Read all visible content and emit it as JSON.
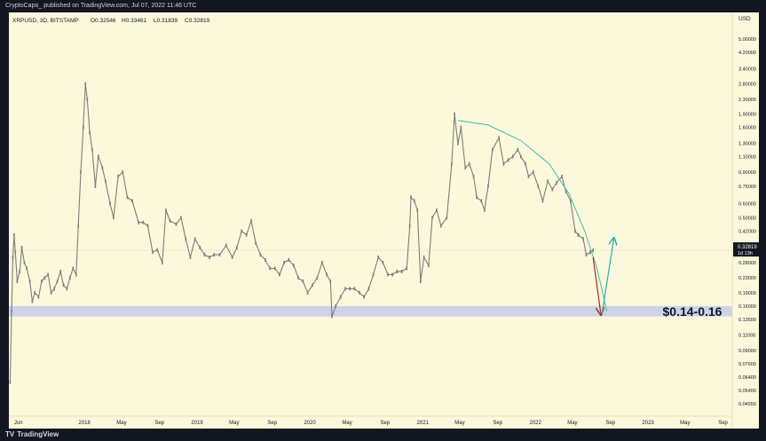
{
  "header": {
    "publish_line": "CryptoCapo_ published on TradingView.com, Jul 07, 2022 11:46 UTC"
  },
  "legend": {
    "symbol": "XRPUSD, 3D, BITSTAMP",
    "open": "O0.32546",
    "high": "H0.33461",
    "low": "L0.31839",
    "close": "C0.32819"
  },
  "footer": {
    "brand": "TradingView",
    "brand_mark": "TV"
  },
  "colors": {
    "background": "#fcf8dc",
    "frame": "#131722",
    "candles": "#7d7d7d",
    "support_zone": "#c9cde8",
    "arc": "#3fbf9f",
    "down_arrow": "#b22222",
    "up_arrow": "#20b2aa",
    "price_tag": "#131722"
  },
  "chart_data": {
    "type": "line",
    "title": "XRPUSD, 3D, BITSTAMP",
    "scale": "log",
    "y_unit": "USD",
    "ylim": [
      0.041,
      6.0
    ],
    "x_range": [
      "2017-05-01",
      "2023-10-01"
    ],
    "x_ticks": [
      {
        "date": "2017-06-01",
        "label": "Jun"
      },
      {
        "date": "2018-01-01",
        "label": "2018"
      },
      {
        "date": "2018-05-01",
        "label": "May"
      },
      {
        "date": "2018-09-01",
        "label": "Sep"
      },
      {
        "date": "2019-01-01",
        "label": "2019"
      },
      {
        "date": "2019-05-01",
        "label": "May"
      },
      {
        "date": "2019-09-01",
        "label": "Sep"
      },
      {
        "date": "2020-01-01",
        "label": "2020"
      },
      {
        "date": "2020-05-01",
        "label": "May"
      },
      {
        "date": "2020-09-01",
        "label": "Sep"
      },
      {
        "date": "2021-01-01",
        "label": "2021"
      },
      {
        "date": "2021-05-01",
        "label": "May"
      },
      {
        "date": "2021-09-01",
        "label": "Sep"
      },
      {
        "date": "2022-01-01",
        "label": "2022"
      },
      {
        "date": "2022-05-01",
        "label": "May"
      },
      {
        "date": "2022-09-01",
        "label": "Sep"
      },
      {
        "date": "2023-01-01",
        "label": "2023"
      },
      {
        "date": "2023-05-01",
        "label": "May"
      },
      {
        "date": "2023-09-01",
        "label": "Sep"
      }
    ],
    "y_ticks": [
      {
        "value": 5.0,
        "label": "5.00000"
      },
      {
        "value": 4.2,
        "label": "4.20000"
      },
      {
        "value": 3.4,
        "label": "3.40000"
      },
      {
        "value": 2.8,
        "label": "2.80000"
      },
      {
        "value": 2.3,
        "label": "2.30000"
      },
      {
        "value": 1.9,
        "label": "1.90000"
      },
      {
        "value": 1.6,
        "label": "1.60000"
      },
      {
        "value": 1.3,
        "label": "1.30000"
      },
      {
        "value": 1.1,
        "label": "1.10000"
      },
      {
        "value": 0.9,
        "label": "0.90000"
      },
      {
        "value": 0.75,
        "label": "0.75000"
      },
      {
        "value": 0.6,
        "label": "0.60000"
      },
      {
        "value": 0.5,
        "label": "0.50000"
      },
      {
        "value": 0.42,
        "label": "0.42000"
      },
      {
        "value": 0.28,
        "label": "0.28000"
      },
      {
        "value": 0.23,
        "label": "0.23000"
      },
      {
        "value": 0.19,
        "label": "0.19000"
      },
      {
        "value": 0.16,
        "label": "0.16000"
      },
      {
        "value": 0.135,
        "label": "0.13500"
      },
      {
        "value": 0.11,
        "label": "0.11000"
      },
      {
        "value": 0.09,
        "label": "0.09000"
      },
      {
        "value": 0.076,
        "label": "0.07600"
      },
      {
        "value": 0.064,
        "label": "0.06400"
      },
      {
        "value": 0.054,
        "label": "0.05400"
      },
      {
        "value": 0.0455,
        "label": "0.04550"
      }
    ],
    "series": [
      {
        "values": [
          {
            "x": "2017-05-05",
            "y": 0.06
          },
          {
            "x": "2017-05-10",
            "y": 0.15
          },
          {
            "x": "2017-05-14",
            "y": 0.3
          },
          {
            "x": "2017-05-18",
            "y": 0.4
          },
          {
            "x": "2017-05-22",
            "y": 0.32
          },
          {
            "x": "2017-05-28",
            "y": 0.22
          },
          {
            "x": "2017-06-05",
            "y": 0.25
          },
          {
            "x": "2017-06-12",
            "y": 0.34
          },
          {
            "x": "2017-06-20",
            "y": 0.28
          },
          {
            "x": "2017-06-28",
            "y": 0.26
          },
          {
            "x": "2017-07-08",
            "y": 0.22
          },
          {
            "x": "2017-07-16",
            "y": 0.17
          },
          {
            "x": "2017-07-24",
            "y": 0.19
          },
          {
            "x": "2017-08-05",
            "y": 0.18
          },
          {
            "x": "2017-08-15",
            "y": 0.22
          },
          {
            "x": "2017-08-25",
            "y": 0.23
          },
          {
            "x": "2017-09-05",
            "y": 0.24
          },
          {
            "x": "2017-09-15",
            "y": 0.19
          },
          {
            "x": "2017-09-25",
            "y": 0.2
          },
          {
            "x": "2017-10-05",
            "y": 0.22
          },
          {
            "x": "2017-10-15",
            "y": 0.25
          },
          {
            "x": "2017-10-25",
            "y": 0.21
          },
          {
            "x": "2017-11-05",
            "y": 0.2
          },
          {
            "x": "2017-11-15",
            "y": 0.23
          },
          {
            "x": "2017-11-25",
            "y": 0.26
          },
          {
            "x": "2017-12-05",
            "y": 0.24
          },
          {
            "x": "2017-12-12",
            "y": 0.45
          },
          {
            "x": "2017-12-20",
            "y": 0.9
          },
          {
            "x": "2017-12-28",
            "y": 1.6
          },
          {
            "x": "2018-01-04",
            "y": 2.8
          },
          {
            "x": "2018-01-10",
            "y": 2.3
          },
          {
            "x": "2018-01-18",
            "y": 1.5
          },
          {
            "x": "2018-01-26",
            "y": 1.2
          },
          {
            "x": "2018-02-05",
            "y": 0.75
          },
          {
            "x": "2018-02-15",
            "y": 1.1
          },
          {
            "x": "2018-02-28",
            "y": 0.95
          },
          {
            "x": "2018-03-10",
            "y": 0.8
          },
          {
            "x": "2018-03-25",
            "y": 0.6
          },
          {
            "x": "2018-04-05",
            "y": 0.5
          },
          {
            "x": "2018-04-20",
            "y": 0.85
          },
          {
            "x": "2018-05-05",
            "y": 0.9
          },
          {
            "x": "2018-05-20",
            "y": 0.65
          },
          {
            "x": "2018-06-05",
            "y": 0.62
          },
          {
            "x": "2018-06-25",
            "y": 0.47
          },
          {
            "x": "2018-07-10",
            "y": 0.47
          },
          {
            "x": "2018-07-25",
            "y": 0.45
          },
          {
            "x": "2018-08-10",
            "y": 0.32
          },
          {
            "x": "2018-08-25",
            "y": 0.33
          },
          {
            "x": "2018-09-10",
            "y": 0.28
          },
          {
            "x": "2018-09-22",
            "y": 0.55
          },
          {
            "x": "2018-10-05",
            "y": 0.48
          },
          {
            "x": "2018-10-25",
            "y": 0.46
          },
          {
            "x": "2018-11-10",
            "y": 0.5
          },
          {
            "x": "2018-11-25",
            "y": 0.38
          },
          {
            "x": "2018-12-10",
            "y": 0.3
          },
          {
            "x": "2018-12-25",
            "y": 0.38
          },
          {
            "x": "2019-01-10",
            "y": 0.34
          },
          {
            "x": "2019-01-25",
            "y": 0.31
          },
          {
            "x": "2019-02-10",
            "y": 0.3
          },
          {
            "x": "2019-02-25",
            "y": 0.31
          },
          {
            "x": "2019-03-15",
            "y": 0.31
          },
          {
            "x": "2019-04-05",
            "y": 0.35
          },
          {
            "x": "2019-04-25",
            "y": 0.3
          },
          {
            "x": "2019-05-10",
            "y": 0.34
          },
          {
            "x": "2019-05-25",
            "y": 0.42
          },
          {
            "x": "2019-06-10",
            "y": 0.4
          },
          {
            "x": "2019-06-25",
            "y": 0.48
          },
          {
            "x": "2019-07-10",
            "y": 0.36
          },
          {
            "x": "2019-07-25",
            "y": 0.31
          },
          {
            "x": "2019-08-10",
            "y": 0.29
          },
          {
            "x": "2019-08-25",
            "y": 0.26
          },
          {
            "x": "2019-09-10",
            "y": 0.26
          },
          {
            "x": "2019-09-25",
            "y": 0.24
          },
          {
            "x": "2019-10-10",
            "y": 0.28
          },
          {
            "x": "2019-10-25",
            "y": 0.29
          },
          {
            "x": "2019-11-10",
            "y": 0.27
          },
          {
            "x": "2019-11-25",
            "y": 0.23
          },
          {
            "x": "2019-12-10",
            "y": 0.22
          },
          {
            "x": "2019-12-25",
            "y": 0.19
          },
          {
            "x": "2020-01-10",
            "y": 0.21
          },
          {
            "x": "2020-01-25",
            "y": 0.23
          },
          {
            "x": "2020-02-10",
            "y": 0.28
          },
          {
            "x": "2020-02-25",
            "y": 0.24
          },
          {
            "x": "2020-03-08",
            "y": 0.22
          },
          {
            "x": "2020-03-13",
            "y": 0.14
          },
          {
            "x": "2020-03-25",
            "y": 0.16
          },
          {
            "x": "2020-04-10",
            "y": 0.18
          },
          {
            "x": "2020-04-25",
            "y": 0.2
          },
          {
            "x": "2020-05-10",
            "y": 0.2
          },
          {
            "x": "2020-05-25",
            "y": 0.2
          },
          {
            "x": "2020-06-10",
            "y": 0.19
          },
          {
            "x": "2020-06-25",
            "y": 0.18
          },
          {
            "x": "2020-07-10",
            "y": 0.2
          },
          {
            "x": "2020-07-25",
            "y": 0.24
          },
          {
            "x": "2020-08-10",
            "y": 0.3
          },
          {
            "x": "2020-08-25",
            "y": 0.28
          },
          {
            "x": "2020-09-10",
            "y": 0.24
          },
          {
            "x": "2020-09-25",
            "y": 0.24
          },
          {
            "x": "2020-10-10",
            "y": 0.25
          },
          {
            "x": "2020-10-25",
            "y": 0.25
          },
          {
            "x": "2020-11-10",
            "y": 0.26
          },
          {
            "x": "2020-11-20",
            "y": 0.45
          },
          {
            "x": "2020-11-24",
            "y": 0.65
          },
          {
            "x": "2020-12-05",
            "y": 0.62
          },
          {
            "x": "2020-12-15",
            "y": 0.55
          },
          {
            "x": "2020-12-25",
            "y": 0.22
          },
          {
            "x": "2021-01-05",
            "y": 0.3
          },
          {
            "x": "2021-01-20",
            "y": 0.27
          },
          {
            "x": "2021-02-01",
            "y": 0.5
          },
          {
            "x": "2021-02-15",
            "y": 0.55
          },
          {
            "x": "2021-03-01",
            "y": 0.45
          },
          {
            "x": "2021-03-20",
            "y": 0.5
          },
          {
            "x": "2021-04-05",
            "y": 1.0
          },
          {
            "x": "2021-04-14",
            "y": 1.9
          },
          {
            "x": "2021-04-25",
            "y": 1.3
          },
          {
            "x": "2021-05-05",
            "y": 1.6
          },
          {
            "x": "2021-05-19",
            "y": 0.95
          },
          {
            "x": "2021-06-01",
            "y": 1.0
          },
          {
            "x": "2021-06-15",
            "y": 0.85
          },
          {
            "x": "2021-06-25",
            "y": 0.65
          },
          {
            "x": "2021-07-10",
            "y": 0.62
          },
          {
            "x": "2021-07-20",
            "y": 0.55
          },
          {
            "x": "2021-08-01",
            "y": 0.75
          },
          {
            "x": "2021-08-15",
            "y": 1.2
          },
          {
            "x": "2021-09-05",
            "y": 1.4
          },
          {
            "x": "2021-09-20",
            "y": 1.0
          },
          {
            "x": "2021-10-05",
            "y": 1.05
          },
          {
            "x": "2021-10-20",
            "y": 1.1
          },
          {
            "x": "2021-11-05",
            "y": 1.2
          },
          {
            "x": "2021-11-15",
            "y": 1.1
          },
          {
            "x": "2021-11-30",
            "y": 1.0
          },
          {
            "x": "2021-12-10",
            "y": 0.85
          },
          {
            "x": "2021-12-25",
            "y": 0.9
          },
          {
            "x": "2022-01-10",
            "y": 0.75
          },
          {
            "x": "2022-01-25",
            "y": 0.62
          },
          {
            "x": "2022-02-10",
            "y": 0.8
          },
          {
            "x": "2022-02-25",
            "y": 0.72
          },
          {
            "x": "2022-03-10",
            "y": 0.78
          },
          {
            "x": "2022-03-28",
            "y": 0.85
          },
          {
            "x": "2022-04-10",
            "y": 0.7
          },
          {
            "x": "2022-04-25",
            "y": 0.62
          },
          {
            "x": "2022-05-10",
            "y": 0.42
          },
          {
            "x": "2022-05-20",
            "y": 0.4
          },
          {
            "x": "2022-06-05",
            "y": 0.38
          },
          {
            "x": "2022-06-15",
            "y": 0.31
          },
          {
            "x": "2022-06-28",
            "y": 0.32
          },
          {
            "x": "2022-07-07",
            "y": 0.32819
          }
        ]
      }
    ],
    "annotations": {
      "zone_label": "$0.14-0.16",
      "zone_range": [
        0.14,
        0.16
      ],
      "arc_points": [
        {
          "x": "2021-04-25",
          "y": 1.75
        },
        {
          "x": "2021-08-01",
          "y": 1.65
        },
        {
          "x": "2021-11-15",
          "y": 1.35
        },
        {
          "x": "2022-02-15",
          "y": 1.0
        },
        {
          "x": "2022-04-20",
          "y": 0.68
        },
        {
          "x": "2022-06-10",
          "y": 0.42
        },
        {
          "x": "2022-07-20",
          "y": 0.26
        },
        {
          "x": "2022-08-10",
          "y": 0.18
        },
        {
          "x": "2022-08-20",
          "y": 0.15
        }
      ],
      "down_arrow": {
        "from": {
          "x": "2022-07-07",
          "y": 0.3
        },
        "to": {
          "x": "2022-08-01",
          "y": 0.145
        }
      },
      "up_arrow": {
        "from": {
          "x": "2022-08-05",
          "y": 0.145
        },
        "to": {
          "x": "2022-09-12",
          "y": 0.38
        }
      },
      "last_price": {
        "value": 0.32819,
        "label": "0.32819",
        "countdown": "1d 13h"
      }
    }
  }
}
